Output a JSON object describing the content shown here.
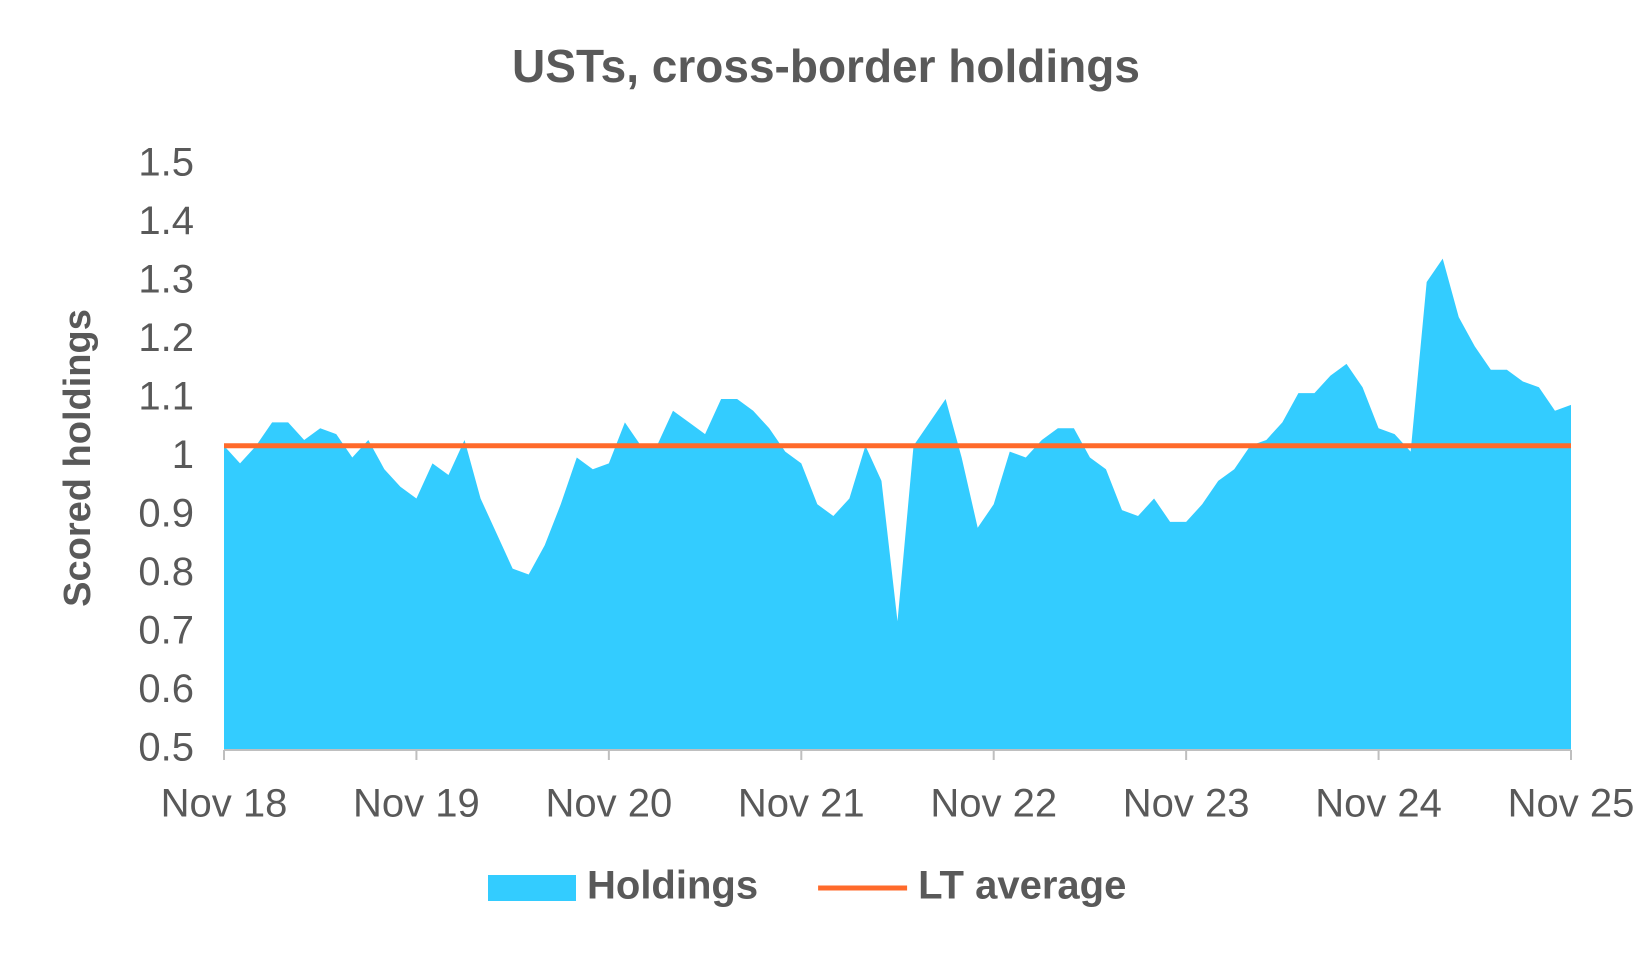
{
  "chart_data": {
    "type": "area",
    "title": "USTs, cross-border holdings",
    "y_label": "Scored holdings",
    "categories": [
      "Nov 18",
      null,
      null,
      null,
      null,
      null,
      null,
      null,
      null,
      null,
      null,
      null,
      "Nov 19",
      null,
      null,
      null,
      null,
      null,
      null,
      null,
      null,
      null,
      null,
      null,
      "Nov 20",
      null,
      null,
      null,
      null,
      null,
      null,
      null,
      null,
      null,
      null,
      null,
      "Nov 21",
      null,
      null,
      null,
      null,
      null,
      null,
      null,
      null,
      null,
      null,
      null,
      "Nov 22",
      null,
      null,
      null,
      null,
      null,
      null,
      null,
      null,
      null,
      null,
      null,
      "Nov 23",
      null,
      null,
      null,
      null,
      null,
      null,
      null,
      null,
      null,
      null,
      null,
      "Nov 24",
      null,
      null,
      null,
      null,
      null,
      null,
      null,
      null,
      null,
      null,
      null,
      "Nov 25"
    ],
    "series": [
      {
        "name": "Holdings",
        "color": "#33ccff",
        "values": [
          1.02,
          0.99,
          1.02,
          1.06,
          1.06,
          1.03,
          1.05,
          1.04,
          1.0,
          1.03,
          0.98,
          0.95,
          0.93,
          0.99,
          0.97,
          1.03,
          0.93,
          0.87,
          0.81,
          0.8,
          0.85,
          0.92,
          1.0,
          0.98,
          0.99,
          1.06,
          1.02,
          1.02,
          1.08,
          1.06,
          1.04,
          1.1,
          1.1,
          1.08,
          1.05,
          1.01,
          0.99,
          0.92,
          0.9,
          0.93,
          1.02,
          0.96,
          0.72,
          1.02,
          1.06,
          1.1,
          1.0,
          0.88,
          0.92,
          1.01,
          1.0,
          1.03,
          1.05,
          1.05,
          1.0,
          0.98,
          0.91,
          0.9,
          0.93,
          0.89,
          0.89,
          0.92,
          0.96,
          0.98,
          1.02,
          1.03,
          1.06,
          1.11,
          1.11,
          1.14,
          1.16,
          1.12,
          1.05,
          1.04,
          1.01,
          1.3,
          1.34,
          1.24,
          1.19,
          1.15,
          1.15,
          1.13,
          1.12,
          1.08,
          1.09
        ]
      }
    ],
    "reference_lines": [
      {
        "name": "LT average",
        "color": "#ff6a2b",
        "value": 1.02
      }
    ],
    "ylim": [
      0.5,
      1.5
    ],
    "yticks": [
      0.5,
      0.6,
      0.7,
      0.8,
      0.9,
      1,
      1.1,
      1.2,
      1.3,
      1.4,
      1.5
    ],
    "grid": false
  }
}
